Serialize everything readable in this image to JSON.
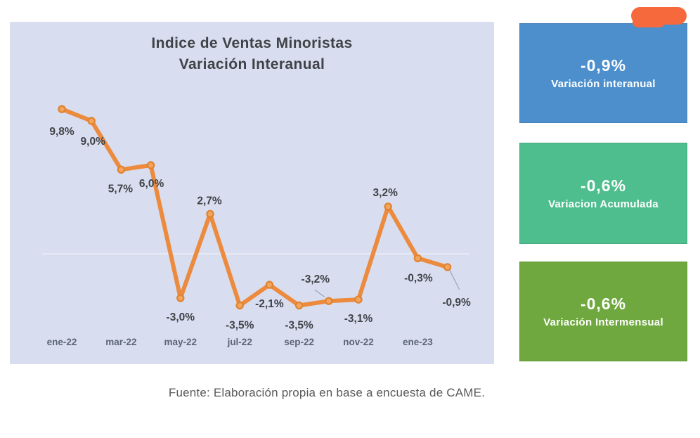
{
  "chart_data": {
    "type": "line",
    "title_line1": "Indice de Ventas Minoristas",
    "title_line2": "Variación Interanual",
    "categories": [
      "ene-22",
      "feb-22",
      "mar-22",
      "abr-22",
      "may-22",
      "jun-22",
      "jul-22",
      "ago-22",
      "sep-22",
      "oct-22",
      "nov-22",
      "dic-22",
      "ene-23",
      "feb-23"
    ],
    "values": [
      9.8,
      9.0,
      5.7,
      6.0,
      -3.0,
      2.7,
      -3.5,
      -2.1,
      -3.5,
      -3.2,
      -3.1,
      3.2,
      -0.3,
      -0.9
    ],
    "point_labels": [
      "9,8%",
      "9,0%",
      "5,7%",
      "6,0%",
      "-3,0%",
      "2,7%",
      "-3,5%",
      "-2,1%",
      "-3,5%",
      "-3,2%",
      "-3,1%",
      "3,2%",
      "-0,3%",
      "-0,9%"
    ],
    "x_tick_labels": [
      "ene-22",
      "mar-22",
      "may-22",
      "jul-22",
      "sep-22",
      "nov-22",
      "ene-23"
    ],
    "ylim": [
      -5,
      11
    ],
    "grid": "single zero line",
    "legend": "none",
    "colors": {
      "panel_bg": "#d8def0",
      "line": "#ec8a3e",
      "marker_fill": "#f3a55e",
      "marker_stroke": "#e0832f",
      "data_label": "#3f4246",
      "tick_label": "#5a6474",
      "gridline": "#eceef5",
      "leader": "#9aa3b5"
    }
  },
  "kpis": [
    {
      "value": "-0,9%",
      "label": "Variación interanual",
      "color": "#4d8fcc"
    },
    {
      "value": "-0,6%",
      "label": "Variacion Acumulada",
      "color": "#4fbe8e"
    },
    {
      "value": "-0,6%",
      "label": "Variación Intermensual",
      "color": "#6fa83e"
    }
  ],
  "caption": "Fuente: Elaboración propia en base a encuesta de CAME.",
  "scribble_color": "#f5693c"
}
